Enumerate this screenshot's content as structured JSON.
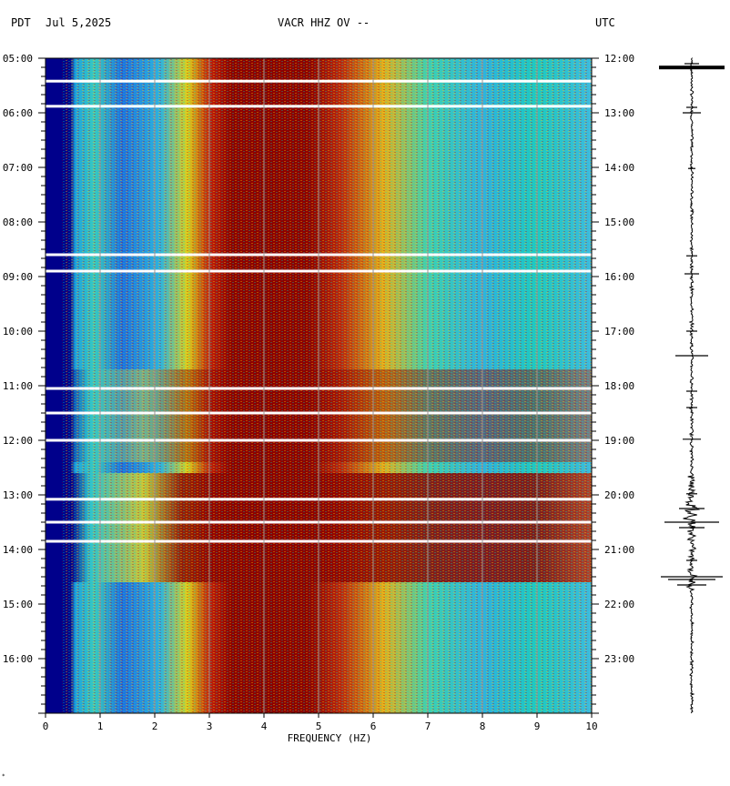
{
  "header": {
    "tz_left": "PDT",
    "date": "Jul 5,2025",
    "station": "VACR HHZ OV --",
    "tz_right": "UTC"
  },
  "chart_data": {
    "type": "heatmap",
    "title": "VACR HHZ OV --",
    "xlabel": "FREQUENCY (HZ)",
    "ylabel": "",
    "xlim": [
      0,
      10
    ],
    "x_ticks": [
      "0",
      "1",
      "2",
      "3",
      "4",
      "5",
      "6",
      "7",
      "8",
      "9",
      "10"
    ],
    "y_ticks_left": [
      "05:00",
      "06:00",
      "07:00",
      "08:00",
      "09:00",
      "10:00",
      "11:00",
      "12:00",
      "13:00",
      "14:00",
      "15:00",
      "16:00"
    ],
    "y_ticks_right": [
      "12:00",
      "13:00",
      "14:00",
      "15:00",
      "16:00",
      "17:00",
      "18:00",
      "19:00",
      "20:00",
      "21:00",
      "22:00",
      "23:00"
    ],
    "gap_hours": [
      0.42,
      0.88,
      3.6,
      3.9,
      6.05,
      6.5,
      7.0,
      8.08,
      8.5,
      8.85
    ],
    "grid": true,
    "colors": {
      "low": "#00008b",
      "mid_low": "#1e90ff",
      "mid": "#00e5c8",
      "mid_high": "#ffd700",
      "high": "#8b0000"
    }
  }
}
